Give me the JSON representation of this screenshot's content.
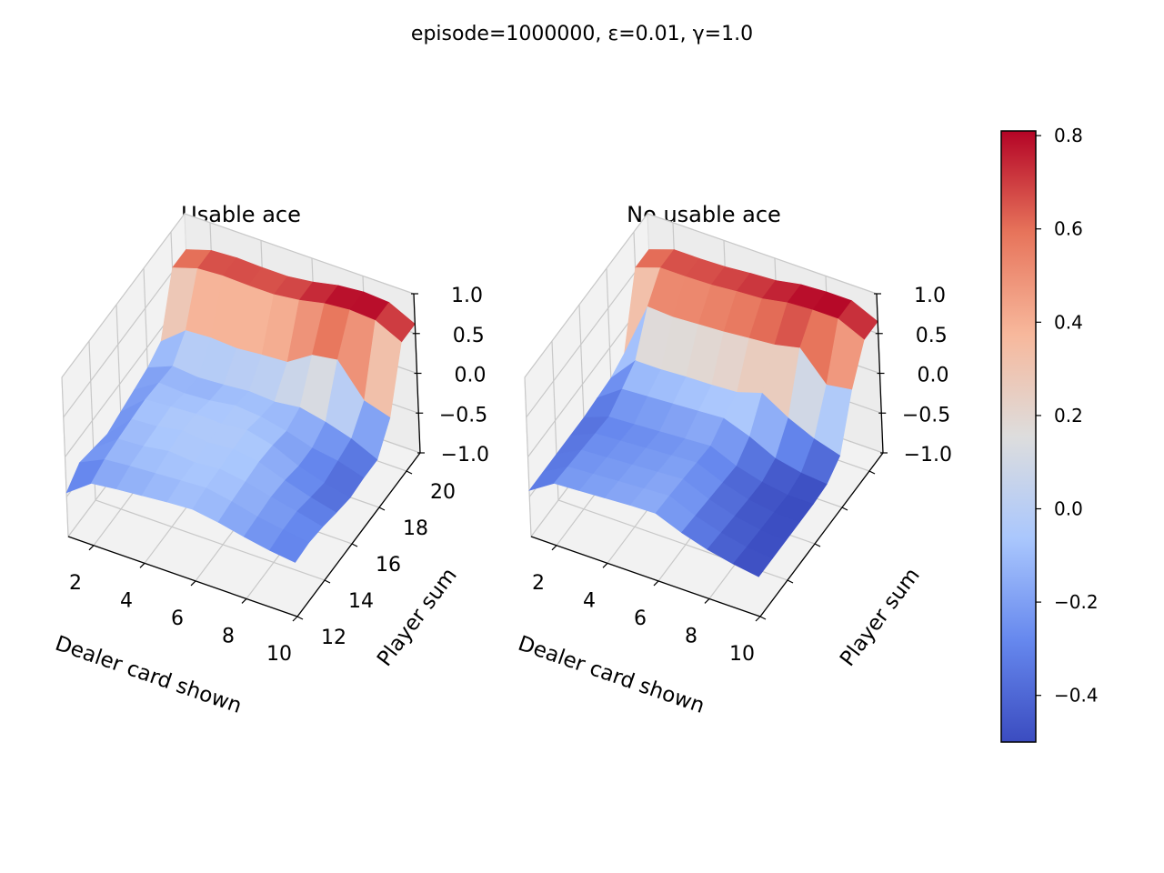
{
  "suptitle": "episode=1000000, ε=0.01, γ=1.0",
  "colormap": {
    "name": "coolwarm",
    "stops": [
      "#3b4cc0",
      "#6688ee",
      "#aac7fd",
      "#dddddd",
      "#f7b89c",
      "#e7745b",
      "#b40426"
    ],
    "vmin": -0.5,
    "vmax": 0.81,
    "ticks": [
      -0.4,
      -0.2,
      0.0,
      0.2,
      0.4,
      0.6,
      0.8
    ],
    "tick_labels": [
      "−0.4",
      "−0.2",
      "0.0",
      "0.2",
      "0.4",
      "0.6",
      "0.8"
    ]
  },
  "chart_data": [
    {
      "type": "surface3d",
      "title": "Usable ace",
      "xlabel": "Dealer card shown",
      "ylabel": "Player sum",
      "zlabel": "",
      "x": [
        1,
        2,
        3,
        4,
        5,
        6,
        7,
        8,
        9,
        10
      ],
      "y": [
        12,
        13,
        14,
        15,
        16,
        17,
        18,
        19,
        20,
        21
      ],
      "xlim": [
        1,
        10
      ],
      "ylim": [
        12,
        21
      ],
      "zlim": [
        -1.0,
        1.0
      ],
      "xtick_labels": [
        "2",
        "4",
        "6",
        "8",
        "10"
      ],
      "ytick_labels": [
        "12",
        "14",
        "16",
        "18",
        "20"
      ],
      "ztick_labels": [
        "−1.0",
        "−0.5",
        "0.0",
        "0.5",
        "1.0"
      ],
      "z": [
        [
          -0.45,
          -0.22,
          -0.18,
          -0.15,
          -0.12,
          -0.1,
          -0.15,
          -0.22,
          -0.28,
          -0.32
        ],
        [
          -0.3,
          -0.15,
          -0.12,
          -0.1,
          -0.08,
          -0.06,
          -0.12,
          -0.2,
          -0.25,
          -0.3
        ],
        [
          -0.35,
          -0.12,
          -0.1,
          -0.05,
          -0.08,
          -0.05,
          -0.1,
          -0.18,
          -0.25,
          -0.33
        ],
        [
          -0.4,
          -0.1,
          -0.08,
          -0.02,
          -0.06,
          -0.03,
          -0.08,
          -0.2,
          -0.3,
          -0.38
        ],
        [
          -0.35,
          -0.08,
          -0.06,
          -0.04,
          -0.05,
          -0.02,
          -0.1,
          -0.25,
          -0.35,
          -0.42
        ],
        [
          -0.3,
          -0.1,
          -0.12,
          -0.1,
          -0.05,
          -0.08,
          -0.15,
          -0.25,
          -0.3,
          -0.4
        ],
        [
          -0.25,
          -0.12,
          -0.15,
          -0.13,
          -0.1,
          -0.12,
          -0.08,
          -0.15,
          -0.25,
          -0.4
        ],
        [
          -0.15,
          0.1,
          0.12,
          0.1,
          0.13,
          0.15,
          0.35,
          0.4,
          0.0,
          -0.1
        ],
        [
          0.55,
          0.65,
          0.67,
          0.66,
          0.66,
          0.7,
          0.77,
          0.8,
          0.78,
          0.62
        ],
        [
          0.55,
          0.65,
          0.67,
          0.66,
          0.66,
          0.7,
          0.77,
          0.8,
          0.78,
          0.62
        ]
      ]
    },
    {
      "type": "surface3d",
      "title": "No usable ace",
      "xlabel": "Dealer card shown",
      "ylabel": "Player sum",
      "zlabel": "",
      "x": [
        1,
        2,
        3,
        4,
        5,
        6,
        7,
        8,
        9,
        10
      ],
      "y": [
        12,
        13,
        14,
        15,
        16,
        17,
        18,
        19,
        20,
        21
      ],
      "xlim": [
        1,
        10
      ],
      "ylim": [
        12,
        21
      ],
      "zlim": [
        -1.0,
        1.0
      ],
      "xtick_labels": [
        "2",
        "4",
        "6",
        "8",
        "10"
      ],
      "ytick_labels": [],
      "ztick_labels": [
        "−1.0",
        "−0.5",
        "0.0",
        "0.5",
        "1.0"
      ],
      "z": [
        [
          -0.42,
          -0.22,
          -0.2,
          -0.18,
          -0.16,
          -0.15,
          -0.28,
          -0.38,
          -0.45,
          -0.5
        ],
        [
          -0.42,
          -0.24,
          -0.22,
          -0.2,
          -0.18,
          -0.16,
          -0.3,
          -0.4,
          -0.47,
          -0.5
        ],
        [
          -0.42,
          -0.26,
          -0.24,
          -0.22,
          -0.2,
          -0.18,
          -0.32,
          -0.42,
          -0.48,
          -0.5
        ],
        [
          -0.42,
          -0.28,
          -0.26,
          -0.24,
          -0.22,
          -0.2,
          -0.34,
          -0.44,
          -0.49,
          -0.5
        ],
        [
          -0.42,
          -0.3,
          -0.28,
          -0.26,
          -0.24,
          -0.22,
          -0.36,
          -0.45,
          -0.5,
          -0.5
        ],
        [
          -0.4,
          -0.18,
          -0.16,
          -0.14,
          -0.12,
          -0.1,
          -0.22,
          -0.38,
          -0.45,
          -0.48
        ],
        [
          -0.38,
          -0.05,
          -0.05,
          -0.03,
          -0.02,
          0.0,
          0.1,
          -0.1,
          -0.25,
          -0.35
        ],
        [
          -0.3,
          0.4,
          0.38,
          0.4,
          0.42,
          0.45,
          0.48,
          0.55,
          0.2,
          0.25
        ],
        [
          0.55,
          0.66,
          0.66,
          0.67,
          0.7,
          0.72,
          0.78,
          0.8,
          0.8,
          0.65
        ],
        [
          0.55,
          0.66,
          0.66,
          0.67,
          0.7,
          0.72,
          0.78,
          0.8,
          0.8,
          0.65
        ]
      ]
    }
  ]
}
